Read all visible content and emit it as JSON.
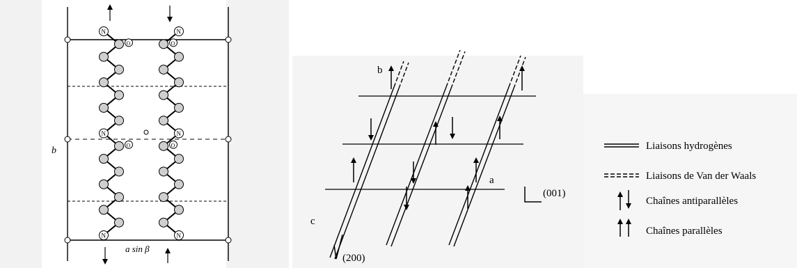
{
  "left_panel": {
    "axis_b": "b",
    "axis_a_sin_beta": "a sin β",
    "atom_N": "N",
    "atom_O": "O"
  },
  "right_panel": {
    "axis_b": "b",
    "axis_a": "a",
    "axis_c": "c",
    "plane_001": "(001)",
    "plane_200": "(200)"
  },
  "legend": {
    "items": [
      {
        "symbol": "double-line",
        "label": "Liaisons hydrogènes"
      },
      {
        "symbol": "double-dashed-line",
        "label": "Liaisons de Van der Waals"
      },
      {
        "symbol": "antiparallel-arrows",
        "label": "Chaînes antiparallèles"
      },
      {
        "symbol": "parallel-arrows",
        "label": "Chaînes parallèles"
      }
    ]
  }
}
